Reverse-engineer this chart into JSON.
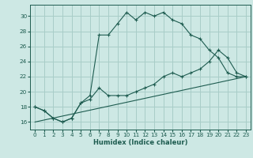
{
  "xlabel": "Humidex (Indice chaleur)",
  "xlim": [
    -0.5,
    23.5
  ],
  "ylim": [
    15.0,
    31.5
  ],
  "yticks": [
    16,
    18,
    20,
    22,
    24,
    26,
    28,
    30
  ],
  "xticks": [
    0,
    1,
    2,
    3,
    4,
    5,
    6,
    7,
    8,
    9,
    10,
    11,
    12,
    13,
    14,
    15,
    16,
    17,
    18,
    19,
    20,
    21,
    22,
    23
  ],
  "background_color": "#cde8e4",
  "grid_color": "#a8cdc8",
  "line_color": "#1e5c50",
  "line1_x": [
    0,
    1,
    2,
    3,
    4,
    5,
    6,
    7,
    8,
    9,
    10,
    11,
    12,
    13,
    14,
    15,
    16,
    17,
    18,
    19,
    20,
    21,
    22,
    23
  ],
  "line1_y": [
    18.0,
    17.5,
    16.5,
    16.0,
    16.5,
    18.5,
    19.5,
    27.5,
    27.5,
    29.0,
    30.5,
    29.5,
    30.5,
    30.0,
    30.5,
    29.5,
    29.0,
    27.5,
    27.0,
    25.5,
    24.5,
    22.5,
    22.0,
    22.0
  ],
  "line2_x": [
    0,
    1,
    2,
    3,
    4,
    5,
    6,
    7,
    8,
    9,
    10,
    11,
    12,
    13,
    14,
    15,
    16,
    17,
    18,
    19,
    20,
    21,
    22,
    23
  ],
  "line2_y": [
    18.0,
    17.5,
    16.5,
    16.0,
    16.5,
    18.5,
    19.0,
    20.5,
    19.5,
    19.5,
    19.5,
    20.0,
    20.5,
    21.0,
    22.0,
    22.5,
    22.0,
    22.5,
    23.0,
    24.0,
    25.5,
    24.5,
    22.5,
    22.0
  ],
  "line3_x": [
    0,
    23
  ],
  "line3_y": [
    16.0,
    22.0
  ]
}
